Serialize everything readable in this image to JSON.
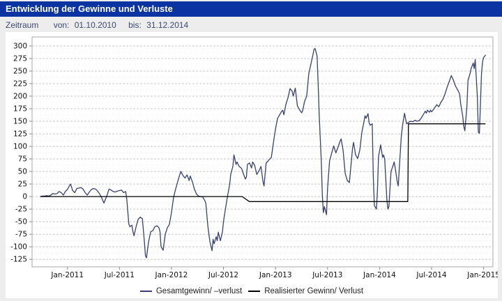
{
  "header": {
    "title": "Entwicklung der Gewinne und Verluste"
  },
  "period": {
    "label": "Zeitraum",
    "from_label": "von:",
    "from_value": "01.10.2010",
    "to_label": "bis:",
    "to_value": "31.12.2014"
  },
  "colors": {
    "header_bg": "#0b34a2",
    "page_bg": "#ededed",
    "figure_bg": "#ffffff",
    "grid": "#c8c8c8",
    "grid_minor": "#e4e4e4",
    "plot_border": "#a9a9a9",
    "tick": "#888888",
    "text": "#3d4a72",
    "total_line": "#374070",
    "realized_line": "#000000"
  },
  "chart_data": {
    "type": "line",
    "title": "Entwicklung der Gewinne und Verluste",
    "xlabel": "",
    "ylabel": "",
    "grid": "horizontal-dashed",
    "legend_position": "bottom-center",
    "x_axis": {
      "range": [
        2010.66,
        2015.09
      ],
      "ticks": [
        2011.0,
        2011.5,
        2012.0,
        2012.5,
        2013.0,
        2013.5,
        2014.0,
        2014.5,
        2015.0
      ],
      "labels": [
        "Jan-2011",
        "Jul-2011",
        "Jan-2012",
        "Jul-2012",
        "Jan-2013",
        "Jul-2013",
        "Jan-2014",
        "Jul-2014",
        "Jan-2015"
      ]
    },
    "y_axis": {
      "range": [
        -140,
        318
      ],
      "ticks": [
        300,
        275,
        250,
        225,
        200,
        175,
        150,
        125,
        100,
        75,
        50,
        25,
        0,
        -25,
        -50,
        -75,
        -100,
        -125
      ]
    },
    "series": [
      {
        "name": "Gesamtgewinn/ –verlust",
        "color": "#374070",
        "points": [
          [
            2010.74,
            0
          ],
          [
            2010.76,
            1
          ],
          [
            2010.78,
            1
          ],
          [
            2010.8,
            2
          ],
          [
            2010.82,
            1
          ],
          [
            2010.84,
            3
          ],
          [
            2010.86,
            6
          ],
          [
            2010.88,
            5
          ],
          [
            2010.9,
            6
          ],
          [
            2010.92,
            10
          ],
          [
            2010.94,
            8
          ],
          [
            2010.96,
            3
          ],
          [
            2010.98,
            10
          ],
          [
            2011.0,
            14
          ],
          [
            2011.02,
            22
          ],
          [
            2011.03,
            25
          ],
          [
            2011.05,
            12
          ],
          [
            2011.07,
            8
          ],
          [
            2011.09,
            16
          ],
          [
            2011.11,
            17
          ],
          [
            2011.13,
            18
          ],
          [
            2011.15,
            15
          ],
          [
            2011.17,
            8
          ],
          [
            2011.19,
            3
          ],
          [
            2011.21,
            9
          ],
          [
            2011.23,
            14
          ],
          [
            2011.25,
            16
          ],
          [
            2011.27,
            15
          ],
          [
            2011.29,
            11
          ],
          [
            2011.31,
            5
          ],
          [
            2011.33,
            -3
          ],
          [
            2011.35,
            -13
          ],
          [
            2011.38,
            2
          ],
          [
            2011.4,
            15
          ],
          [
            2011.42,
            13
          ],
          [
            2011.44,
            10
          ],
          [
            2011.46,
            9
          ],
          [
            2011.48,
            11
          ],
          [
            2011.5,
            12
          ],
          [
            2011.52,
            13
          ],
          [
            2011.54,
            8
          ],
          [
            2011.56,
            10
          ],
          [
            2011.57,
            -5
          ],
          [
            2011.59,
            -55
          ],
          [
            2011.6,
            -60
          ],
          [
            2011.62,
            -57
          ],
          [
            2011.63,
            -70
          ],
          [
            2011.64,
            -78
          ],
          [
            2011.66,
            -60
          ],
          [
            2011.68,
            -45
          ],
          [
            2011.7,
            -41
          ],
          [
            2011.72,
            -44
          ],
          [
            2011.74,
            -90
          ],
          [
            2011.75,
            -118
          ],
          [
            2011.76,
            -122
          ],
          [
            2011.78,
            -90
          ],
          [
            2011.8,
            -70
          ],
          [
            2011.82,
            -68
          ],
          [
            2011.84,
            -60
          ],
          [
            2011.86,
            -58
          ],
          [
            2011.88,
            -62
          ],
          [
            2011.89,
            -70
          ],
          [
            2011.9,
            -100
          ],
          [
            2011.92,
            -107
          ],
          [
            2011.94,
            -75
          ],
          [
            2011.96,
            -62
          ],
          [
            2011.98,
            -55
          ],
          [
            2012.0,
            -32
          ],
          [
            2012.02,
            -2
          ],
          [
            2012.04,
            15
          ],
          [
            2012.06,
            30
          ],
          [
            2012.08,
            44
          ],
          [
            2012.09,
            50
          ],
          [
            2012.11,
            42
          ],
          [
            2012.13,
            37
          ],
          [
            2012.15,
            43
          ],
          [
            2012.17,
            32
          ],
          [
            2012.18,
            41
          ],
          [
            2012.2,
            30
          ],
          [
            2012.22,
            15
          ],
          [
            2012.24,
            5
          ],
          [
            2012.26,
            1
          ],
          [
            2012.28,
            0
          ],
          [
            2012.3,
            -1
          ],
          [
            2012.32,
            -8
          ],
          [
            2012.33,
            -13
          ],
          [
            2012.35,
            -60
          ],
          [
            2012.37,
            -90
          ],
          [
            2012.39,
            -108
          ],
          [
            2012.4,
            -85
          ],
          [
            2012.41,
            -94
          ],
          [
            2012.43,
            -80
          ],
          [
            2012.44,
            -88
          ],
          [
            2012.45,
            -71
          ],
          [
            2012.47,
            -88
          ],
          [
            2012.49,
            -70
          ],
          [
            2012.5,
            -50
          ],
          [
            2012.52,
            -23
          ],
          [
            2012.54,
            2
          ],
          [
            2012.56,
            25
          ],
          [
            2012.57,
            45
          ],
          [
            2012.59,
            60
          ],
          [
            2012.6,
            83
          ],
          [
            2012.62,
            64
          ],
          [
            2012.63,
            69
          ],
          [
            2012.65,
            60
          ],
          [
            2012.67,
            57
          ],
          [
            2012.68,
            53
          ],
          [
            2012.69,
            46
          ],
          [
            2012.71,
            35
          ],
          [
            2012.72,
            39
          ],
          [
            2012.73,
            64
          ],
          [
            2012.75,
            67
          ],
          [
            2012.77,
            57
          ],
          [
            2012.78,
            69
          ],
          [
            2012.8,
            62
          ],
          [
            2012.82,
            44
          ],
          [
            2012.84,
            51
          ],
          [
            2012.86,
            60
          ],
          [
            2012.88,
            30
          ],
          [
            2012.89,
            21
          ],
          [
            2012.91,
            67
          ],
          [
            2012.93,
            71
          ],
          [
            2012.94,
            74
          ],
          [
            2012.96,
            78
          ],
          [
            2012.98,
            108
          ],
          [
            2013.0,
            135
          ],
          [
            2013.02,
            156
          ],
          [
            2013.04,
            163
          ],
          [
            2013.06,
            170
          ],
          [
            2013.07,
            172
          ],
          [
            2013.08,
            163
          ],
          [
            2013.1,
            184
          ],
          [
            2013.12,
            197
          ],
          [
            2013.14,
            215
          ],
          [
            2013.16,
            210
          ],
          [
            2013.17,
            200
          ],
          [
            2013.19,
            216
          ],
          [
            2013.21,
            181
          ],
          [
            2013.23,
            173
          ],
          [
            2013.25,
            167
          ],
          [
            2013.26,
            170
          ],
          [
            2013.28,
            190
          ],
          [
            2013.3,
            200
          ],
          [
            2013.32,
            245
          ],
          [
            2013.35,
            273
          ],
          [
            2013.37,
            293
          ],
          [
            2013.38,
            295
          ],
          [
            2013.4,
            280
          ],
          [
            2013.41,
            225
          ],
          [
            2013.42,
            163
          ],
          [
            2013.44,
            71
          ],
          [
            2013.45,
            3
          ],
          [
            2013.46,
            -32
          ],
          [
            2013.47,
            -20
          ],
          [
            2013.49,
            -36
          ],
          [
            2013.5,
            16
          ],
          [
            2013.52,
            71
          ],
          [
            2013.55,
            94
          ],
          [
            2013.56,
            101
          ],
          [
            2013.58,
            87
          ],
          [
            2013.6,
            98
          ],
          [
            2013.62,
            110
          ],
          [
            2013.63,
            115
          ],
          [
            2013.65,
            92
          ],
          [
            2013.67,
            46
          ],
          [
            2013.69,
            32
          ],
          [
            2013.71,
            28
          ],
          [
            2013.73,
            73
          ],
          [
            2013.74,
            96
          ],
          [
            2013.75,
            108
          ],
          [
            2013.77,
            83
          ],
          [
            2013.79,
            76
          ],
          [
            2013.81,
            92
          ],
          [
            2013.83,
            128
          ],
          [
            2013.85,
            149
          ],
          [
            2013.86,
            161
          ],
          [
            2013.87,
            156
          ],
          [
            2013.89,
            165
          ],
          [
            2013.9,
            147
          ],
          [
            2013.91,
            142
          ],
          [
            2013.93,
            145
          ],
          [
            2013.94,
            40
          ],
          [
            2013.95,
            -18
          ],
          [
            2013.97,
            -25
          ],
          [
            2013.98,
            14
          ],
          [
            2013.99,
            80
          ],
          [
            2014.01,
            103
          ],
          [
            2014.03,
            78
          ],
          [
            2014.04,
            83
          ],
          [
            2014.05,
            74
          ],
          [
            2014.07,
            -4
          ],
          [
            2014.08,
            -25
          ],
          [
            2014.09,
            -20
          ],
          [
            2014.11,
            50
          ],
          [
            2014.13,
            62
          ],
          [
            2014.14,
            69
          ],
          [
            2014.15,
            58
          ],
          [
            2014.17,
            30
          ],
          [
            2014.18,
            21
          ],
          [
            2014.2,
            90
          ],
          [
            2014.21,
            122
          ],
          [
            2014.22,
            140
          ],
          [
            2014.24,
            166
          ],
          [
            2014.25,
            155
          ],
          [
            2014.26,
            145
          ],
          [
            2014.28,
            148
          ],
          [
            2014.3,
            150
          ],
          [
            2014.32,
            149
          ],
          [
            2014.34,
            152
          ],
          [
            2014.36,
            150
          ],
          [
            2014.38,
            151
          ],
          [
            2014.4,
            156
          ],
          [
            2014.42,
            163
          ],
          [
            2014.44,
            170
          ],
          [
            2014.45,
            166
          ],
          [
            2014.46,
            172
          ],
          [
            2014.48,
            168
          ],
          [
            2014.49,
            172
          ],
          [
            2014.5,
            169
          ],
          [
            2014.52,
            174
          ],
          [
            2014.53,
            177
          ],
          [
            2014.55,
            183
          ],
          [
            2014.57,
            179
          ],
          [
            2014.59,
            188
          ],
          [
            2014.61,
            194
          ],
          [
            2014.63,
            205
          ],
          [
            2014.65,
            218
          ],
          [
            2014.67,
            229
          ],
          [
            2014.69,
            241
          ],
          [
            2014.71,
            232
          ],
          [
            2014.73,
            220
          ],
          [
            2014.75,
            213
          ],
          [
            2014.77,
            204
          ],
          [
            2014.78,
            185
          ],
          [
            2014.8,
            160
          ],
          [
            2014.81,
            140
          ],
          [
            2014.82,
            131
          ],
          [
            2014.84,
            180
          ],
          [
            2014.85,
            231
          ],
          [
            2014.87,
            245
          ],
          [
            2014.88,
            255
          ],
          [
            2014.9,
            266
          ],
          [
            2014.91,
            255
          ],
          [
            2014.92,
            273
          ],
          [
            2014.94,
            200
          ],
          [
            2014.95,
            128
          ],
          [
            2014.96,
            126
          ],
          [
            2014.98,
            245
          ],
          [
            2014.99,
            268
          ],
          [
            2015.0,
            277
          ],
          [
            2015.02,
            282
          ]
        ]
      },
      {
        "name": "Realisierter Gewinn/ Verlust",
        "color": "#000000",
        "points": [
          [
            2010.74,
            0
          ],
          [
            2012.68,
            0
          ],
          [
            2012.748,
            -10
          ],
          [
            2014.272,
            -10
          ],
          [
            2014.278,
            145
          ],
          [
            2015.018,
            145
          ]
        ]
      }
    ]
  }
}
